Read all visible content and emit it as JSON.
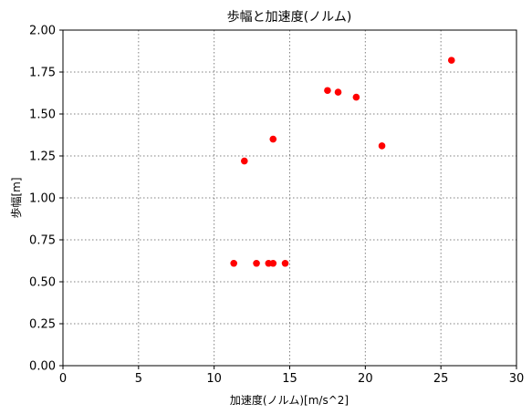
{
  "chart_data": {
    "type": "scatter",
    "title": "歩幅と加速度(ノルム)",
    "xlabel": "加速度(ノルム)[m/s^2]",
    "ylabel": "歩幅[m]",
    "xlim": [
      0,
      30
    ],
    "ylim": [
      0,
      2
    ],
    "xticks": [
      0,
      5,
      10,
      15,
      20,
      25,
      30
    ],
    "yticks": [
      0,
      0.25,
      0.5,
      0.75,
      1.0,
      1.25,
      1.5,
      1.75,
      2.0
    ],
    "xtick_labels": [
      "0",
      "5",
      "10",
      "15",
      "20",
      "25",
      "30"
    ],
    "ytick_labels": [
      "0.00",
      "0.25",
      "0.50",
      "0.75",
      "1.00",
      "1.25",
      "1.50",
      "1.75",
      "2.00"
    ],
    "grid": true,
    "marker_color": "#ff0000",
    "points": [
      {
        "x": 11.3,
        "y": 0.61
      },
      {
        "x": 12.8,
        "y": 0.61
      },
      {
        "x": 13.6,
        "y": 0.61
      },
      {
        "x": 13.9,
        "y": 0.61
      },
      {
        "x": 14.7,
        "y": 0.61
      },
      {
        "x": 12.0,
        "y": 1.22
      },
      {
        "x": 13.9,
        "y": 1.35
      },
      {
        "x": 17.5,
        "y": 1.64
      },
      {
        "x": 18.2,
        "y": 1.63
      },
      {
        "x": 19.4,
        "y": 1.6
      },
      {
        "x": 21.1,
        "y": 1.31
      },
      {
        "x": 25.7,
        "y": 1.82
      }
    ]
  }
}
